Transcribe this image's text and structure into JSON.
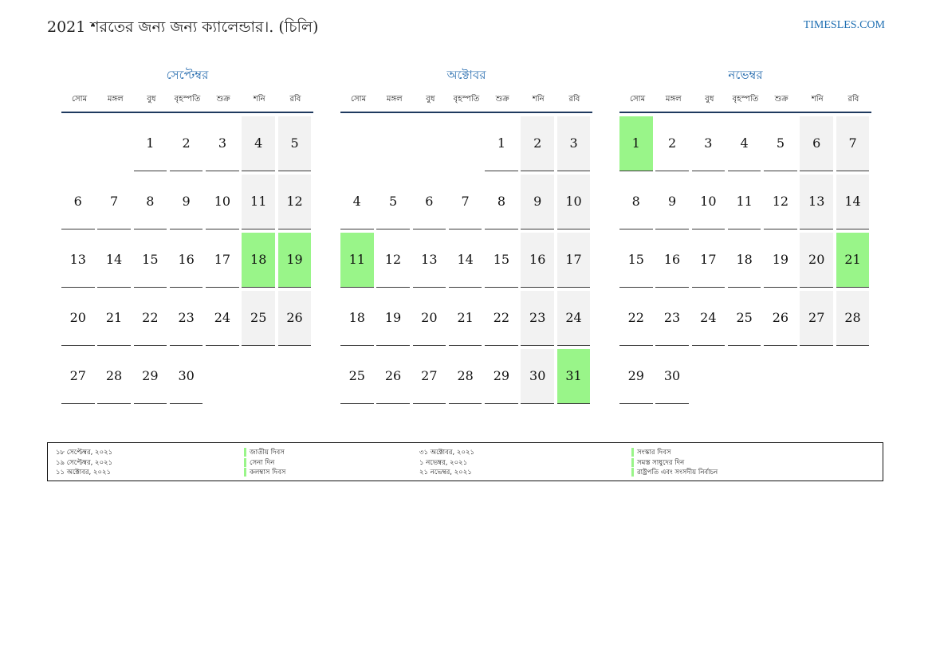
{
  "header": {
    "title": "2021 শরতের জন্য জন্য ক্যালেন্ডার।. (চিলি)",
    "site": "TIMESLES.COM"
  },
  "weekdays": [
    "সোম",
    "মঙ্গল",
    "বুধ",
    "বৃহস্পতি",
    "শুক্র",
    "শনি",
    "রবি"
  ],
  "months": [
    {
      "name": "সেপ্টেম্বর",
      "offset": 2,
      "days": 30,
      "holidays": [
        18,
        19
      ]
    },
    {
      "name": "অক্টোবর",
      "offset": 4,
      "days": 31,
      "holidays": [
        11,
        31
      ]
    },
    {
      "name": "নভেম্বর",
      "offset": 0,
      "days": 30,
      "holidays": [
        1,
        21
      ]
    }
  ],
  "colors": {
    "holiday": "#99f589",
    "weekend": "#f2f2f2",
    "month_title": "#2b6fb0",
    "site": "#1f6fb2"
  },
  "legend": {
    "left": [
      {
        "date": "১৮ সেপ্টেম্বর, ২০২১",
        "name": "জাতীয় দিবস"
      },
      {
        "date": "১৯ সেপ্টেম্বর, ২০২১",
        "name": "সেনা দিন"
      },
      {
        "date": "১১ অক্টোবর, ২০২১",
        "name": "কলম্বাস দিবস"
      }
    ],
    "right": [
      {
        "date": "৩১ অক্টোবর, ২০২১",
        "name": "সংস্কার দিবস"
      },
      {
        "date": "১ নভেম্বর, ২০২১",
        "name": "সমস্ত সাধুদের দিন"
      },
      {
        "date": "২১ নভেম্বর, ২০২১",
        "name": "রাষ্ট্রপতি এবং সংসদীয় নির্বাচন"
      }
    ]
  }
}
